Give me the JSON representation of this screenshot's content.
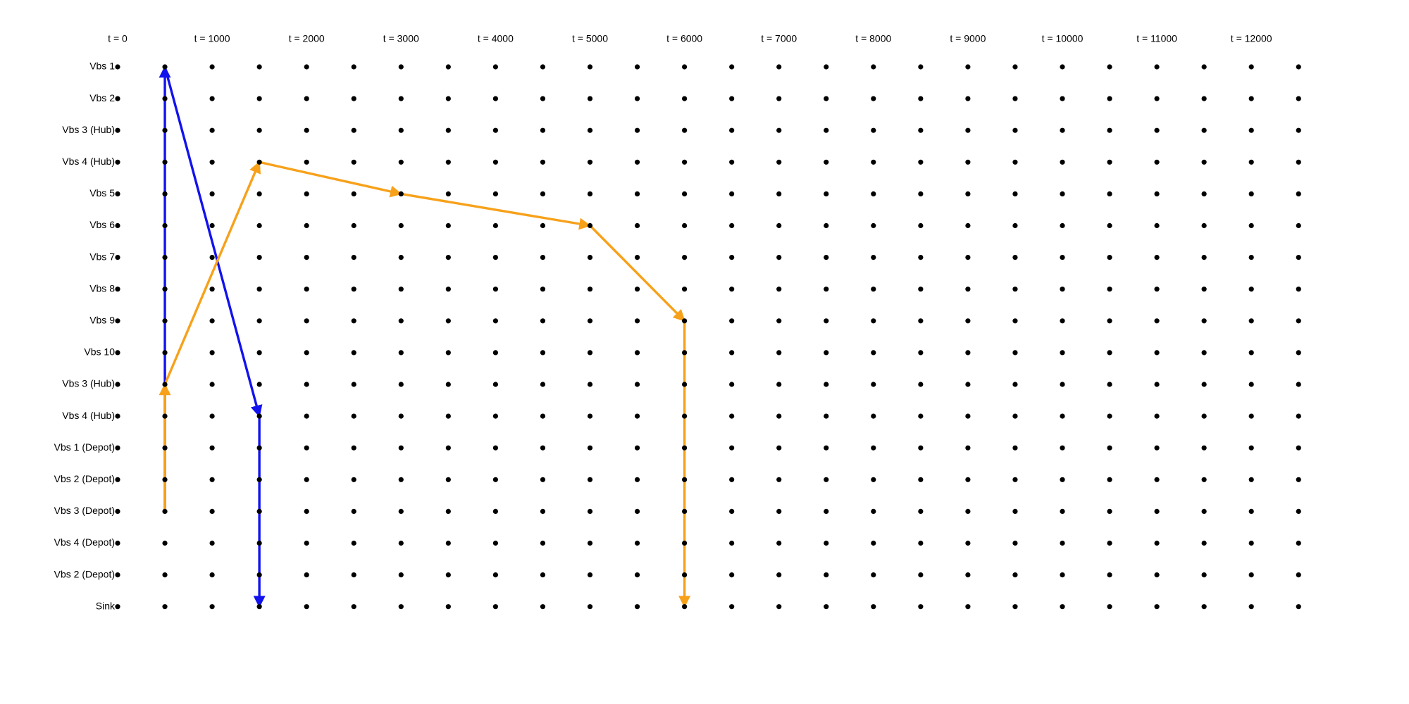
{
  "time_labels": [
    {
      "t": 0,
      "label": "t = 0"
    },
    {
      "t": 1000,
      "label": "t = 1000"
    },
    {
      "t": 2000,
      "label": "t = 2000"
    },
    {
      "t": 3000,
      "label": "t = 3000"
    },
    {
      "t": 4000,
      "label": "t = 4000"
    },
    {
      "t": 5000,
      "label": "t = 5000"
    },
    {
      "t": 6000,
      "label": "t = 6000"
    },
    {
      "t": 7000,
      "label": "t = 7000"
    },
    {
      "t": 8000,
      "label": "t = 8000"
    },
    {
      "t": 9000,
      "label": "t = 9000"
    },
    {
      "t": 10000,
      "label": "t = 10000"
    },
    {
      "t": 11000,
      "label": "t = 11000"
    },
    {
      "t": 12000,
      "label": "t = 12000"
    }
  ],
  "node_times": [
    500,
    1000,
    1500,
    2000,
    2500,
    3000,
    3500,
    4000,
    4500,
    5000,
    5500,
    6000,
    6500,
    7000,
    7500,
    8000,
    8500,
    9000,
    9500,
    10000,
    10500,
    11000,
    11500,
    12000,
    12500
  ],
  "rows": [
    "Vbs 1",
    "Vbs 2",
    "Vbs 3 (Hub)",
    "Vbs 4 (Hub)",
    "Vbs 5",
    "Vbs 6",
    "Vbs 7",
    "Vbs 8",
    "Vbs 9",
    "Vbs 10",
    "Vbs 3 (Hub)",
    "Vbs 4 (Hub)",
    "Vbs 1 (Depot)",
    "Vbs 2 (Depot)",
    "Vbs 3 (Depot)",
    "Vbs 4 (Depot)",
    "Vbs 2 (Depot)",
    "Sink"
  ],
  "paths": [
    {
      "color": "#1212ee",
      "edges": [
        {
          "from": {
            "row": 14,
            "t": 500
          },
          "to": {
            "row": 0,
            "t": 500
          }
        },
        {
          "from": {
            "row": 0,
            "t": 500
          },
          "to": {
            "row": 11,
            "t": 1500
          }
        },
        {
          "from": {
            "row": 11,
            "t": 1500
          },
          "to": {
            "row": 17,
            "t": 1500
          }
        }
      ]
    },
    {
      "color": "#f7a11a",
      "edges": [
        {
          "from": {
            "row": 14,
            "t": 500
          },
          "to": {
            "row": 10,
            "t": 500
          }
        },
        {
          "from": {
            "row": 10,
            "t": 500
          },
          "to": {
            "row": 3,
            "t": 1500
          }
        },
        {
          "from": {
            "row": 3,
            "t": 1500
          },
          "to": {
            "row": 4,
            "t": 3000
          }
        },
        {
          "from": {
            "row": 4,
            "t": 3000
          },
          "to": {
            "row": 5,
            "t": 5000
          }
        },
        {
          "from": {
            "row": 5,
            "t": 5000
          },
          "to": {
            "row": 8,
            "t": 6000
          }
        },
        {
          "from": {
            "row": 8,
            "t": 6000
          },
          "to": {
            "row": 17,
            "t": 6000
          }
        }
      ]
    }
  ]
}
